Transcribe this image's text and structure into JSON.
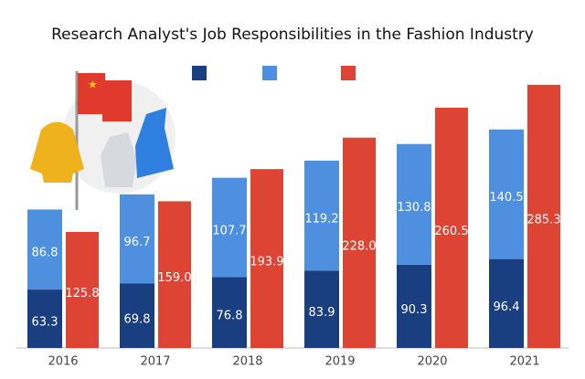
{
  "chart_data": {
    "type": "bar",
    "title": "Research Analyst's Job Responsibilities in the Fashion Industry",
    "categories": [
      "2016",
      "2017",
      "2018",
      "2019",
      "2020",
      "2021"
    ],
    "series": [
      {
        "color": "#1a3f80",
        "stack": "a",
        "values": [
          63.3,
          69.8,
          76.8,
          83.9,
          90.3,
          96.4
        ],
        "value_labels": [
          "63.3",
          "69.8",
          "76.8",
          "83.9",
          "90.3",
          "96.4"
        ]
      },
      {
        "color": "#4f8fe0",
        "stack": "a",
        "values": [
          86.8,
          96.7,
          107.7,
          119.2,
          130.8,
          140.5
        ],
        "value_labels": [
          "86.8",
          "96.7",
          "107.7",
          "119.2",
          "130.8",
          "140.5"
        ]
      },
      {
        "color": "#dd4434",
        "stack": "b",
        "values": [
          125.8,
          159.0,
          193.9,
          228.0,
          260.5,
          285.3
        ],
        "value_labels": [
          "125.8",
          "159.0",
          "193.9",
          "228.0",
          "260.5",
          "285.3"
        ]
      }
    ],
    "ylim": [
      0,
      300
    ]
  }
}
